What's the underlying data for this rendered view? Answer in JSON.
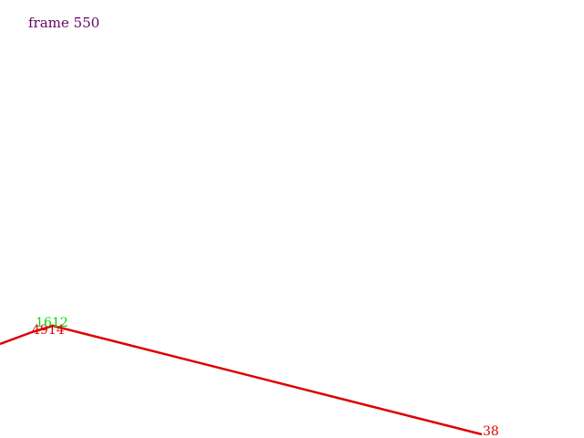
{
  "frame": {
    "label": "frame 550"
  },
  "polyline": {
    "color": "#dd0000",
    "vertices": [
      {
        "label": "",
        "label_color": "#dd0000"
      },
      {
        "label": "4914",
        "label_color": "#dd0000"
      },
      {
        "label": "38",
        "label_color": "#dd0000"
      }
    ]
  },
  "overlay_labels": [
    {
      "label": "1612",
      "color": "#00dd00"
    }
  ]
}
